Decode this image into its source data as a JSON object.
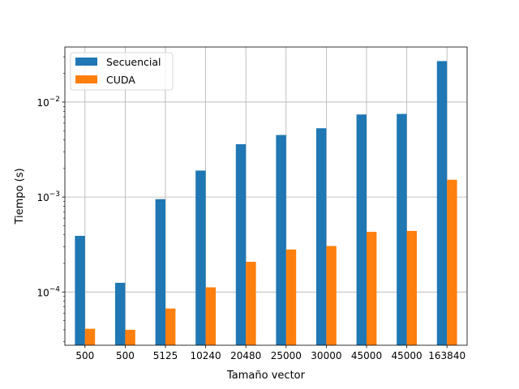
{
  "chart_data": {
    "type": "bar",
    "title": "",
    "xlabel": "Tamaño vector",
    "ylabel": "Tiempo (s)",
    "yscale": "log",
    "ylim": [
      2.75e-05,
      0.038
    ],
    "grid": true,
    "legend_position": "top-left",
    "categories": [
      "500",
      "500",
      "5125",
      "10240",
      "20480",
      "25000",
      "30000",
      "45000",
      "45000",
      "163840"
    ],
    "series": [
      {
        "name": "Secuencial",
        "color": "#1f77b4",
        "values": [
          0.00039,
          0.000125,
          0.00095,
          0.0019,
          0.0036,
          0.0045,
          0.0053,
          0.0074,
          0.0075,
          0.027
        ]
      },
      {
        "name": "CUDA",
        "color": "#ff7f0e",
        "values": [
          4.1e-05,
          4e-05,
          6.7e-05,
          0.000112,
          0.000208,
          0.00028,
          0.000305,
          0.00043,
          0.00044,
          0.00152
        ]
      }
    ],
    "y_ticks": [
      {
        "value": 0.0001,
        "base": "10",
        "exp": "−4"
      },
      {
        "value": 0.001,
        "base": "10",
        "exp": "−3"
      },
      {
        "value": 0.01,
        "base": "10",
        "exp": "−2"
      }
    ]
  }
}
